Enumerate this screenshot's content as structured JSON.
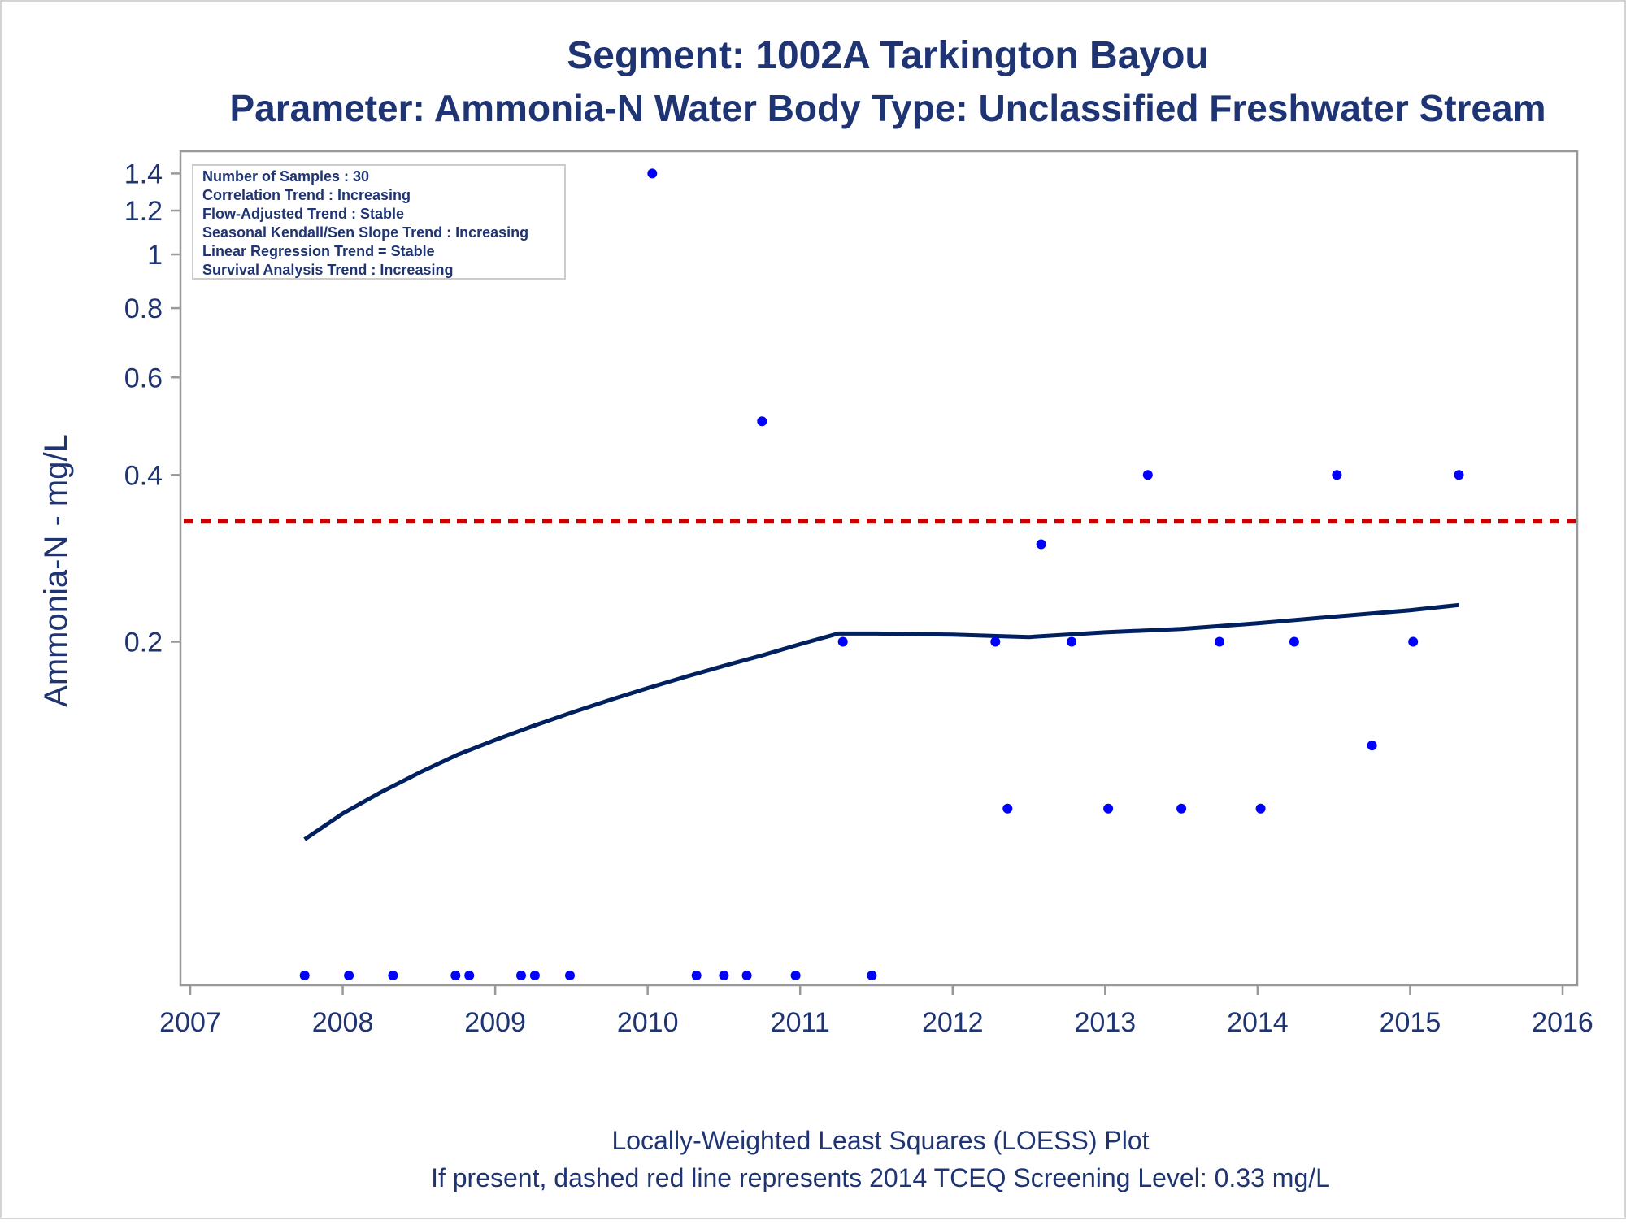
{
  "chart_data": {
    "type": "scatter",
    "title": "Segment: 1002A  Tarkington Bayou",
    "subtitle": "Parameter: Ammonia-N   Water Body Type: Unclassified Freshwater Stream",
    "ylabel": "Ammonia-N - mg/L",
    "footnotes": [
      "Locally-Weighted Least Squares (LOESS) Plot",
      "If present, dashed red line represents 2014 TCEQ Screening Level: 0.33 mg/L"
    ],
    "y_scale": "log",
    "ylim": [
      0.05,
      1.45
    ],
    "xlim": [
      2007,
      2016
    ],
    "x_ticks": [
      "2007",
      "2008",
      "2009",
      "2010",
      "2011",
      "2012",
      "2013",
      "2014",
      "2015",
      "2016"
    ],
    "y_ticks": [
      "0.2",
      "0.4",
      "0.6",
      "0.8",
      "1",
      "1.2",
      "1.4"
    ],
    "grid": false,
    "info_box": [
      "Number of Samples : 30",
      "Correlation Trend : Increasing",
      "Flow-Adjusted Trend : Stable",
      "Seasonal Kendall/Sen Slope Trend : Increasing",
      "Linear Regression Trend = Stable",
      "Survival Analysis Trend : Increasing"
    ],
    "screening_level": 0.33,
    "colors": {
      "points": "#0000ff",
      "loess": "#002060",
      "screening": "#cc0000",
      "text": "#1f3473"
    },
    "series": [
      {
        "type": "scatter",
        "x": [
          2007.75,
          2008.04,
          2008.33,
          2008.74,
          2008.83,
          2009.17,
          2009.26,
          2009.49,
          2010.03,
          2010.32,
          2010.5,
          2010.65,
          2010.75,
          2010.97,
          2011.28,
          2011.47,
          2012.28,
          2012.36,
          2012.58,
          2012.78,
          2013.02,
          2013.28,
          2013.5,
          2013.75,
          2014.02,
          2014.24,
          2014.52,
          2014.75,
          2015.02,
          2015.32
        ],
        "y": [
          0.05,
          0.05,
          0.05,
          0.05,
          0.05,
          0.05,
          0.05,
          0.05,
          1.4,
          0.05,
          0.05,
          0.05,
          0.5,
          0.05,
          0.2,
          0.05,
          0.2,
          0.1,
          0.3,
          0.2,
          0.1,
          0.4,
          0.1,
          0.2,
          0.1,
          0.2,
          0.4,
          0.13,
          0.2,
          0.4
        ]
      },
      {
        "type": "line",
        "x": [
          2007.75,
          2008.0,
          2008.25,
          2008.5,
          2008.75,
          2009.0,
          2009.25,
          2009.5,
          2009.75,
          2010.0,
          2010.25,
          2010.5,
          2010.75,
          2011.0,
          2011.25,
          2011.5,
          2012.0,
          2012.5,
          2013.0,
          2013.5,
          2014.0,
          2014.5,
          2015.0,
          2015.32
        ],
        "y": [
          0.088,
          0.098,
          0.107,
          0.116,
          0.125,
          0.133,
          0.141,
          0.149,
          0.157,
          0.165,
          0.173,
          0.181,
          0.189,
          0.198,
          0.207,
          0.207,
          0.206,
          0.204,
          0.208,
          0.211,
          0.216,
          0.222,
          0.228,
          0.233
        ]
      }
    ]
  }
}
